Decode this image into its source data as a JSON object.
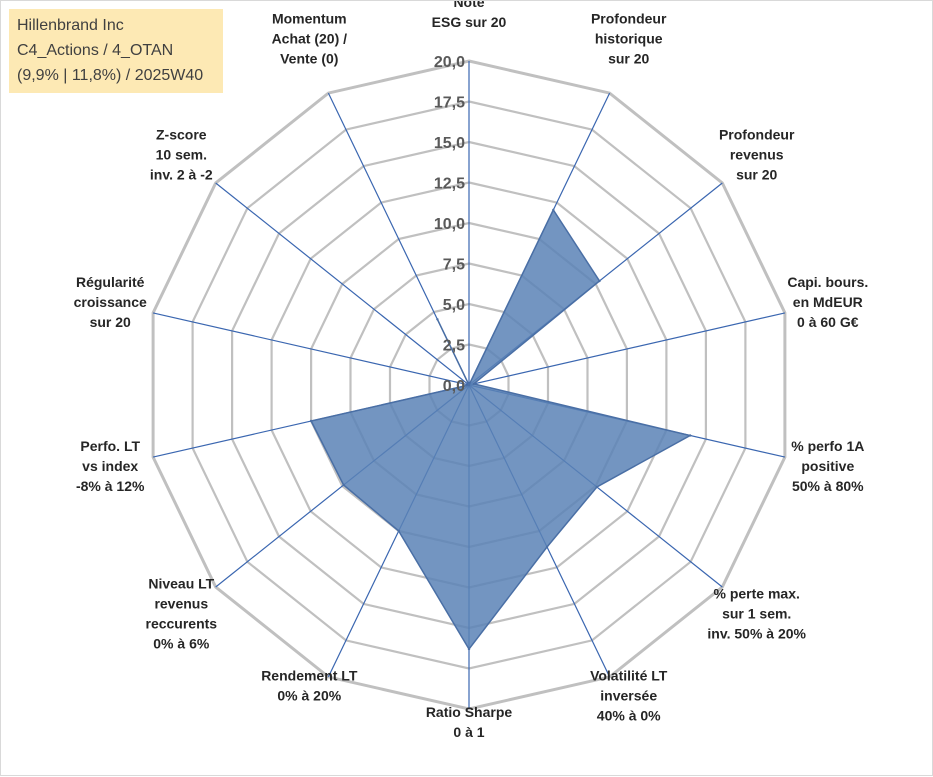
{
  "info_box": {
    "line1": "Hillenbrand Inc",
    "line2": "C4_Actions / 4_OTAN",
    "line3": "(9,9% | 11,8%) / 2025W40"
  },
  "colors": {
    "fill": "#5b82b6",
    "stroke": "#4a6fa5",
    "spokes": "#3a66b0",
    "rings": "#c0c0c0"
  },
  "chart_data": {
    "type": "radar",
    "title": "",
    "rmin": 0,
    "rmax": 20,
    "ticks": [
      "0,0",
      "2,5",
      "5,0",
      "7,5",
      "10,0",
      "12,5",
      "15,0",
      "17,5",
      "20,0"
    ],
    "grid": true,
    "categories": [
      [
        "Note",
        "ESG sur 20"
      ],
      [
        "Profondeur",
        "historique",
        "sur 20"
      ],
      [
        "Profondeur",
        "revenus",
        "sur 20"
      ],
      [
        "Capi. bours.",
        "en MdEUR",
        "0 à 60 G€"
      ],
      [
        "% perfo 1A",
        "positive",
        "50% à 80%"
      ],
      [
        "% perte max.",
        "sur 1 sem.",
        "inv. 50% à 20%"
      ],
      [
        "Volatilité LT",
        "inversée",
        "40% à 0%"
      ],
      [
        "Ratio Sharpe",
        "0 à 1"
      ],
      [
        "Rendement LT",
        "0% à 20%"
      ],
      [
        "Niveau LT",
        "revenus",
        "reccurents",
        "0% à 6%"
      ],
      [
        "Perfo. LT",
        "vs index",
        "-8% à 12%"
      ],
      [
        "Régularité",
        "croissance",
        "sur 20"
      ],
      [
        "Z-score",
        "10 sem.",
        "inv. 2 à -2"
      ],
      [
        "Momentum",
        "Achat (20) /",
        "Vente (0)"
      ]
    ],
    "series": [
      {
        "values": [
          0,
          12.0,
          10.3,
          0.3,
          14.0,
          10.1,
          11.1,
          16.3,
          10.0,
          9.9,
          10.0,
          0,
          0,
          4.5
        ]
      }
    ]
  }
}
